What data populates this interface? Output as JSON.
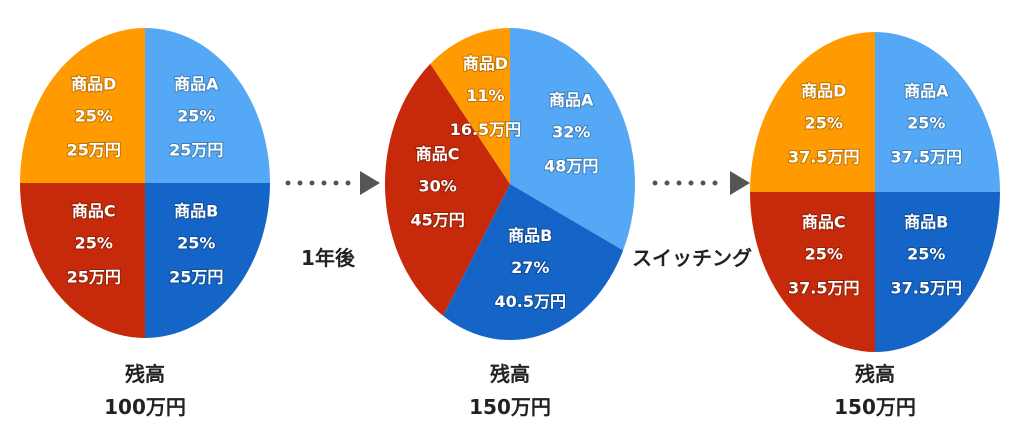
{
  "chart_data": [
    {
      "type": "pie",
      "slices": [
        {
          "name": "商品A",
          "percent_label": "25%",
          "amount_label": "25万円",
          "value": 25,
          "color": "#55A8F5"
        },
        {
          "name": "商品B",
          "percent_label": "25%",
          "amount_label": "25万円",
          "value": 25,
          "color": "#1565C8"
        },
        {
          "name": "商品C",
          "percent_label": "25%",
          "amount_label": "25万円",
          "value": 25,
          "color": "#C62A0A"
        },
        {
          "name": "商品D",
          "percent_label": "25%",
          "amount_label": "25万円",
          "value": 25,
          "color": "#FF9A00"
        }
      ],
      "caption": [
        "残高",
        "100万円"
      ]
    },
    {
      "type": "pie",
      "slices": [
        {
          "name": "商品A",
          "percent_label": "32%",
          "amount_label": "48万円",
          "value": 32,
          "color": "#55A8F5"
        },
        {
          "name": "商品B",
          "percent_label": "27%",
          "amount_label": "40.5万円",
          "value": 27,
          "color": "#1565C8"
        },
        {
          "name": "商品C",
          "percent_label": "30%",
          "amount_label": "45万円",
          "value": 30,
          "color": "#C62A0A"
        },
        {
          "name": "商品D",
          "percent_label": "11%",
          "amount_label": "16.5万円",
          "value": 11,
          "color": "#FF9A00"
        }
      ],
      "caption": [
        "残高",
        "150万円"
      ]
    },
    {
      "type": "pie",
      "slices": [
        {
          "name": "商品A",
          "percent_label": "25%",
          "amount_label": "37.5万円",
          "value": 25,
          "color": "#55A8F5"
        },
        {
          "name": "商品B",
          "percent_label": "25%",
          "amount_label": "37.5万円",
          "value": 25,
          "color": "#1565C8"
        },
        {
          "name": "商品C",
          "percent_label": "25%",
          "amount_label": "37.5万円",
          "value": 25,
          "color": "#C62A0A"
        },
        {
          "name": "商品D",
          "percent_label": "25%",
          "amount_label": "37.5万円",
          "value": 25,
          "color": "#FF9A00"
        }
      ],
      "caption": [
        "残高",
        "150万円"
      ]
    }
  ],
  "arrows": [
    {
      "label": "1年後",
      "color": "#555555"
    },
    {
      "label": "スイッチング",
      "color": "#555555"
    }
  ]
}
